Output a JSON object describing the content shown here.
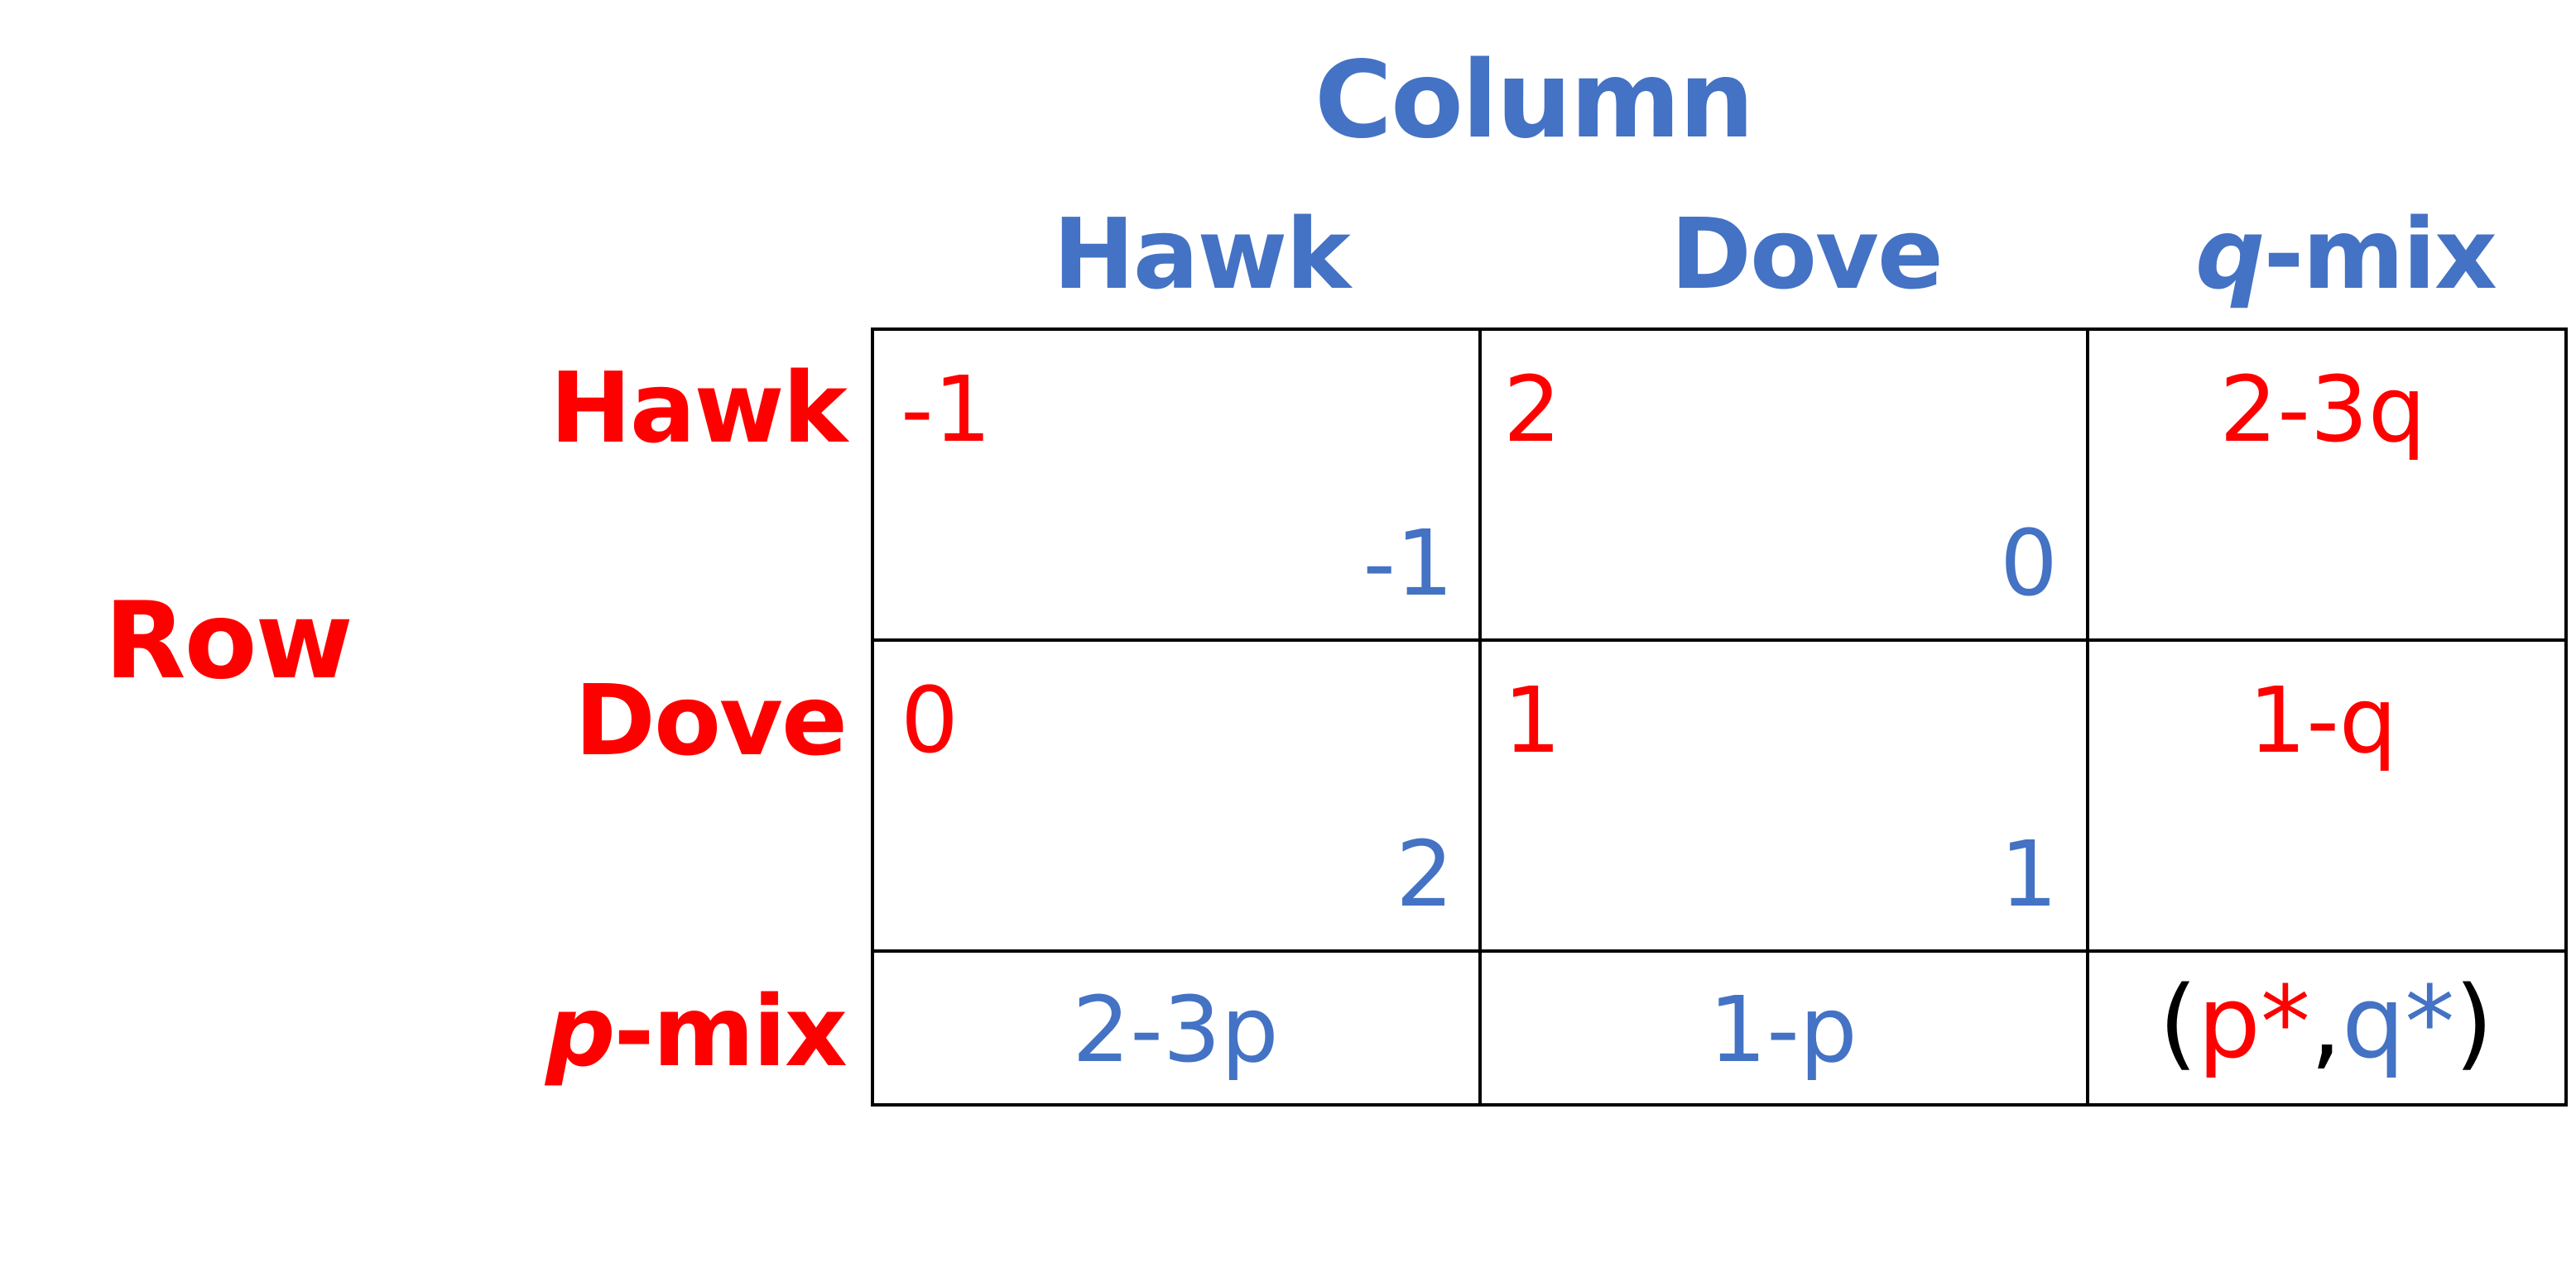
{
  "column_player": "Column",
  "row_player": "Row",
  "column_headers": {
    "hawk": "Hawk",
    "dove": "Dove",
    "mix_var": "q",
    "mix_suffix": "-mix"
  },
  "row_headers": {
    "hawk": "Hawk",
    "dove": "Dove",
    "mix_var": "p",
    "mix_suffix": "-mix"
  },
  "payoffs": {
    "hawk_hawk": {
      "row": "-1",
      "column": "-1"
    },
    "hawk_dove": {
      "row": "2",
      "column": "0"
    },
    "dove_hawk": {
      "row": "0",
      "column": "2"
    },
    "dove_dove": {
      "row": "1",
      "column": "1"
    }
  },
  "expected_payoffs": {
    "row_hawk_vs_qmix": "2-3q",
    "row_dove_vs_qmix": "1-q",
    "column_hawk_vs_pmix": "2-3p",
    "column_dove_vs_pmix": "1-p"
  },
  "equilibrium": {
    "open": "(",
    "p": "p*",
    "sep": ",",
    "q": "q*",
    "close": ")"
  },
  "colors": {
    "row_player": "#FF0000",
    "column_player": "#4472C4",
    "grid": "#000000"
  }
}
